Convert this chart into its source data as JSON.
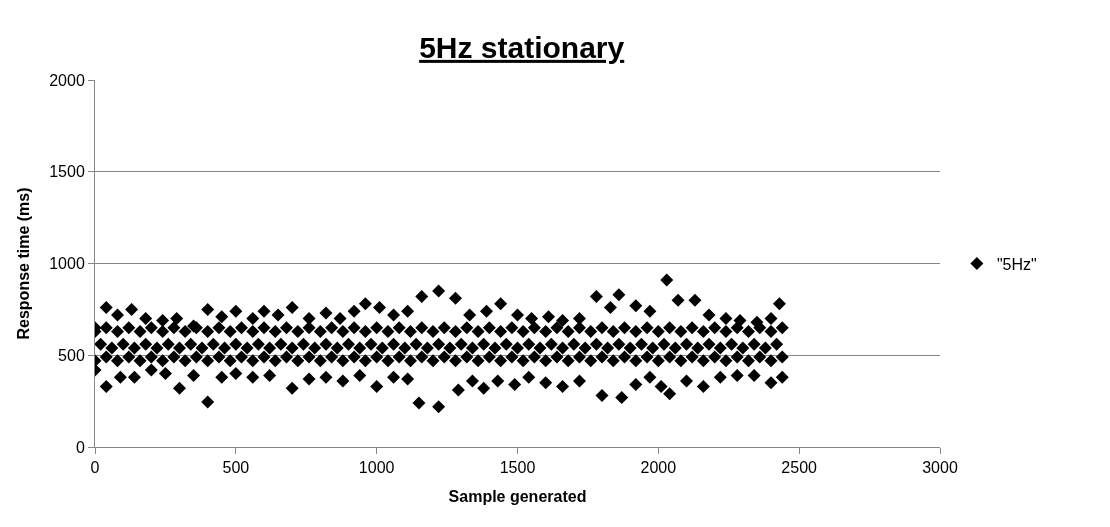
{
  "chart_data": {
    "type": "scatter",
    "title": "5Hz stationary",
    "xlabel": "Sample generated",
    "ylabel": "Response time (ms)",
    "xlim": [
      0,
      3000
    ],
    "xticks": [
      0,
      500,
      1000,
      1500,
      2000,
      2500,
      3000
    ],
    "ylim": [
      0,
      2000
    ],
    "yticks": [
      0,
      500,
      1000,
      1500,
      2000
    ],
    "grid": "y",
    "legend": "right",
    "marker": "diamond",
    "series": [
      {
        "name": "\"5Hz\"",
        "color": "#000000",
        "x": [
          0,
          40,
          80,
          130,
          180,
          240,
          290,
          350,
          400,
          450,
          500,
          560,
          600,
          650,
          700,
          760,
          820,
          870,
          920,
          960,
          1010,
          1060,
          1110,
          1160,
          1220,
          1280,
          1330,
          1390,
          1440,
          1500,
          1550,
          1610,
          1660,
          1720,
          1780,
          1830,
          1860,
          1920,
          1970,
          2030,
          2070,
          2130,
          2180,
          2240,
          2290,
          2350,
          2400,
          2430,
          0,
          40,
          90,
          140,
          200,
          250,
          300,
          350,
          400,
          450,
          500,
          560,
          620,
          700,
          760,
          820,
          880,
          940,
          1000,
          1060,
          1110,
          1150,
          1220,
          1290,
          1340,
          1380,
          1430,
          1490,
          1540,
          1600,
          1660,
          1720,
          1800,
          1870,
          1920,
          1970,
          2010,
          2040,
          2100,
          2160,
          2220,
          2280,
          2340,
          2400,
          2440,
          0,
          40,
          80,
          120,
          160,
          200,
          240,
          280,
          320,
          360,
          400,
          440,
          480,
          520,
          560,
          600,
          640,
          680,
          720,
          760,
          800,
          840,
          880,
          920,
          960,
          1000,
          1040,
          1080,
          1120,
          1160,
          1200,
          1240,
          1280,
          1320,
          1360,
          1400,
          1440,
          1480,
          1520,
          1560,
          1600,
          1640,
          1680,
          1720,
          1760,
          1800,
          1840,
          1880,
          1920,
          1960,
          2000,
          2040,
          2080,
          2120,
          2160,
          2200,
          2240,
          2280,
          2320,
          2360,
          2400,
          2440,
          20,
          60,
          100,
          140,
          180,
          220,
          260,
          300,
          340,
          380,
          420,
          460,
          500,
          540,
          580,
          620,
          660,
          700,
          740,
          780,
          820,
          860,
          900,
          940,
          980,
          1020,
          1060,
          1100,
          1140,
          1180,
          1220,
          1260,
          1300,
          1340,
          1380,
          1420,
          1460,
          1500,
          1540,
          1580,
          1620,
          1660,
          1700,
          1740,
          1780,
          1820,
          1860,
          1900,
          1940,
          1980,
          2020,
          2060,
          2100,
          2140,
          2180,
          2220,
          2260,
          2300,
          2340,
          2380,
          2420,
          0,
          40,
          80,
          120,
          160,
          200,
          240,
          280,
          320,
          360,
          400,
          440,
          480,
          520,
          560,
          600,
          640,
          680,
          720,
          760,
          800,
          840,
          880,
          920,
          960,
          1000,
          1040,
          1080,
          1120,
          1160,
          1200,
          1240,
          1280,
          1320,
          1360,
          1400,
          1440,
          1480,
          1520,
          1560,
          1600,
          1640,
          1680,
          1720,
          1760,
          1800,
          1840,
          1880,
          1920,
          1960,
          2000,
          2040,
          2080,
          2120,
          2160,
          2200,
          2240,
          2280,
          2320,
          2360,
          2400,
          2440
        ],
        "values": [
          650,
          760,
          720,
          750,
          700,
          690,
          700,
          660,
          750,
          710,
          740,
          700,
          740,
          720,
          760,
          700,
          730,
          700,
          740,
          780,
          760,
          720,
          740,
          820,
          850,
          810,
          720,
          740,
          780,
          720,
          700,
          710,
          690,
          700,
          820,
          760,
          830,
          770,
          740,
          910,
          800,
          800,
          720,
          700,
          690,
          680,
          700,
          780,
          420,
          330,
          380,
          380,
          420,
          400,
          320,
          390,
          245,
          380,
          400,
          380,
          390,
          320,
          370,
          380,
          360,
          390,
          330,
          380,
          370,
          240,
          220,
          310,
          360,
          320,
          360,
          340,
          380,
          350,
          330,
          360,
          280,
          270,
          340,
          380,
          330,
          290,
          360,
          330,
          380,
          390,
          390,
          350,
          380,
          470,
          490,
          470,
          490,
          470,
          490,
          470,
          490,
          470,
          490,
          470,
          490,
          470,
          490,
          470,
          490,
          470,
          490,
          470,
          490,
          470,
          490,
          470,
          490,
          470,
          490,
          470,
          490,
          470,
          490,
          470,
          490,
          470,
          490,
          470,
          490,
          470,
          490,
          470,
          490,
          470,
          490,
          470,
          490,
          470,
          490,
          470,
          490,
          470,
          490,
          470,
          490,
          470,
          490,
          470,
          490,
          470,
          490,
          470,
          490,
          470,
          490,
          560,
          540,
          560,
          540,
          560,
          540,
          560,
          540,
          560,
          540,
          560,
          540,
          560,
          540,
          560,
          540,
          560,
          540,
          560,
          540,
          560,
          540,
          560,
          540,
          560,
          540,
          560,
          540,
          560,
          540,
          560,
          540,
          560,
          540,
          560,
          540,
          560,
          540,
          560,
          540,
          560,
          540,
          560,
          540,
          560,
          540,
          560,
          540,
          560,
          540,
          560,
          540,
          560,
          540,
          560,
          540,
          560,
          540,
          560,
          540,
          560,
          630,
          650,
          630,
          650,
          630,
          650,
          630,
          650,
          630,
          650,
          630,
          650,
          630,
          650,
          630,
          650,
          630,
          650,
          630,
          650,
          630,
          650,
          630,
          650,
          630,
          650,
          630,
          650,
          630,
          650,
          630,
          650,
          630,
          650,
          630,
          650,
          630,
          650,
          630,
          650,
          630,
          650,
          630,
          650,
          630,
          650,
          630,
          650,
          630,
          650,
          630,
          650,
          630,
          650,
          630,
          650,
          630,
          650,
          630,
          650,
          630,
          650
        ]
      }
    ]
  }
}
